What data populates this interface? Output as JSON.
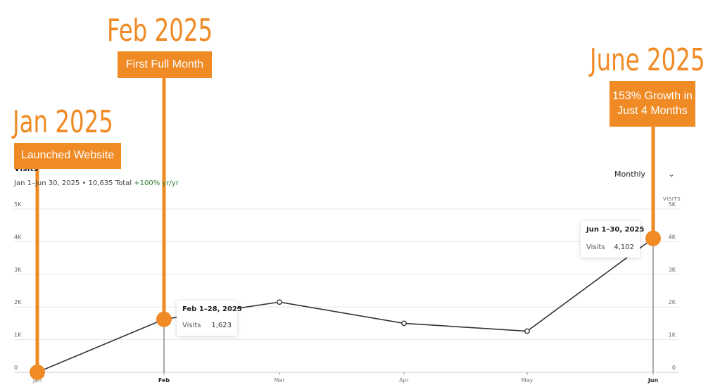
{
  "header": {
    "title": "Visits",
    "subtitle_main": "Jan 1–Jun 30, 2025 • 10,635 Total ",
    "subtitle_growth": "+100% yr/yr"
  },
  "dropdown": {
    "label": "Monthly"
  },
  "axis": {
    "right_title": "VISITS",
    "y_ticks": [
      "0",
      "1K",
      "2K",
      "3K",
      "4K",
      "5K"
    ],
    "x_ticks": [
      "Jan",
      "Feb",
      "Mar",
      "Apr",
      "May",
      "Jun"
    ]
  },
  "tooltips": [
    {
      "title": "Feb 1–28, 2025",
      "label": "Visits",
      "value": "1,623"
    },
    {
      "title": "Jun 1–30, 2025",
      "label": "Visits",
      "value": "4,102"
    }
  ],
  "annotations": [
    {
      "heading": "Jan 2025",
      "caption": "Launched Website"
    },
    {
      "heading": "Feb 2025",
      "caption": "First Full Month"
    },
    {
      "heading": "June 2025",
      "caption": "153% Growth in Just 4 Months"
    }
  ],
  "colors": {
    "accent": "#f08a24",
    "line": "#333333",
    "grid": "#e6e6e6",
    "growth": "#2e7d32"
  },
  "chart_data": {
    "type": "line",
    "categories": [
      "Jan",
      "Feb",
      "Mar",
      "Apr",
      "May",
      "Jun"
    ],
    "series": [
      {
        "name": "Visits",
        "values": [
          0,
          1623,
          2150,
          1500,
          1260,
          4102
        ]
      }
    ],
    "ylim": [
      0,
      5000
    ],
    "grid": true
  }
}
